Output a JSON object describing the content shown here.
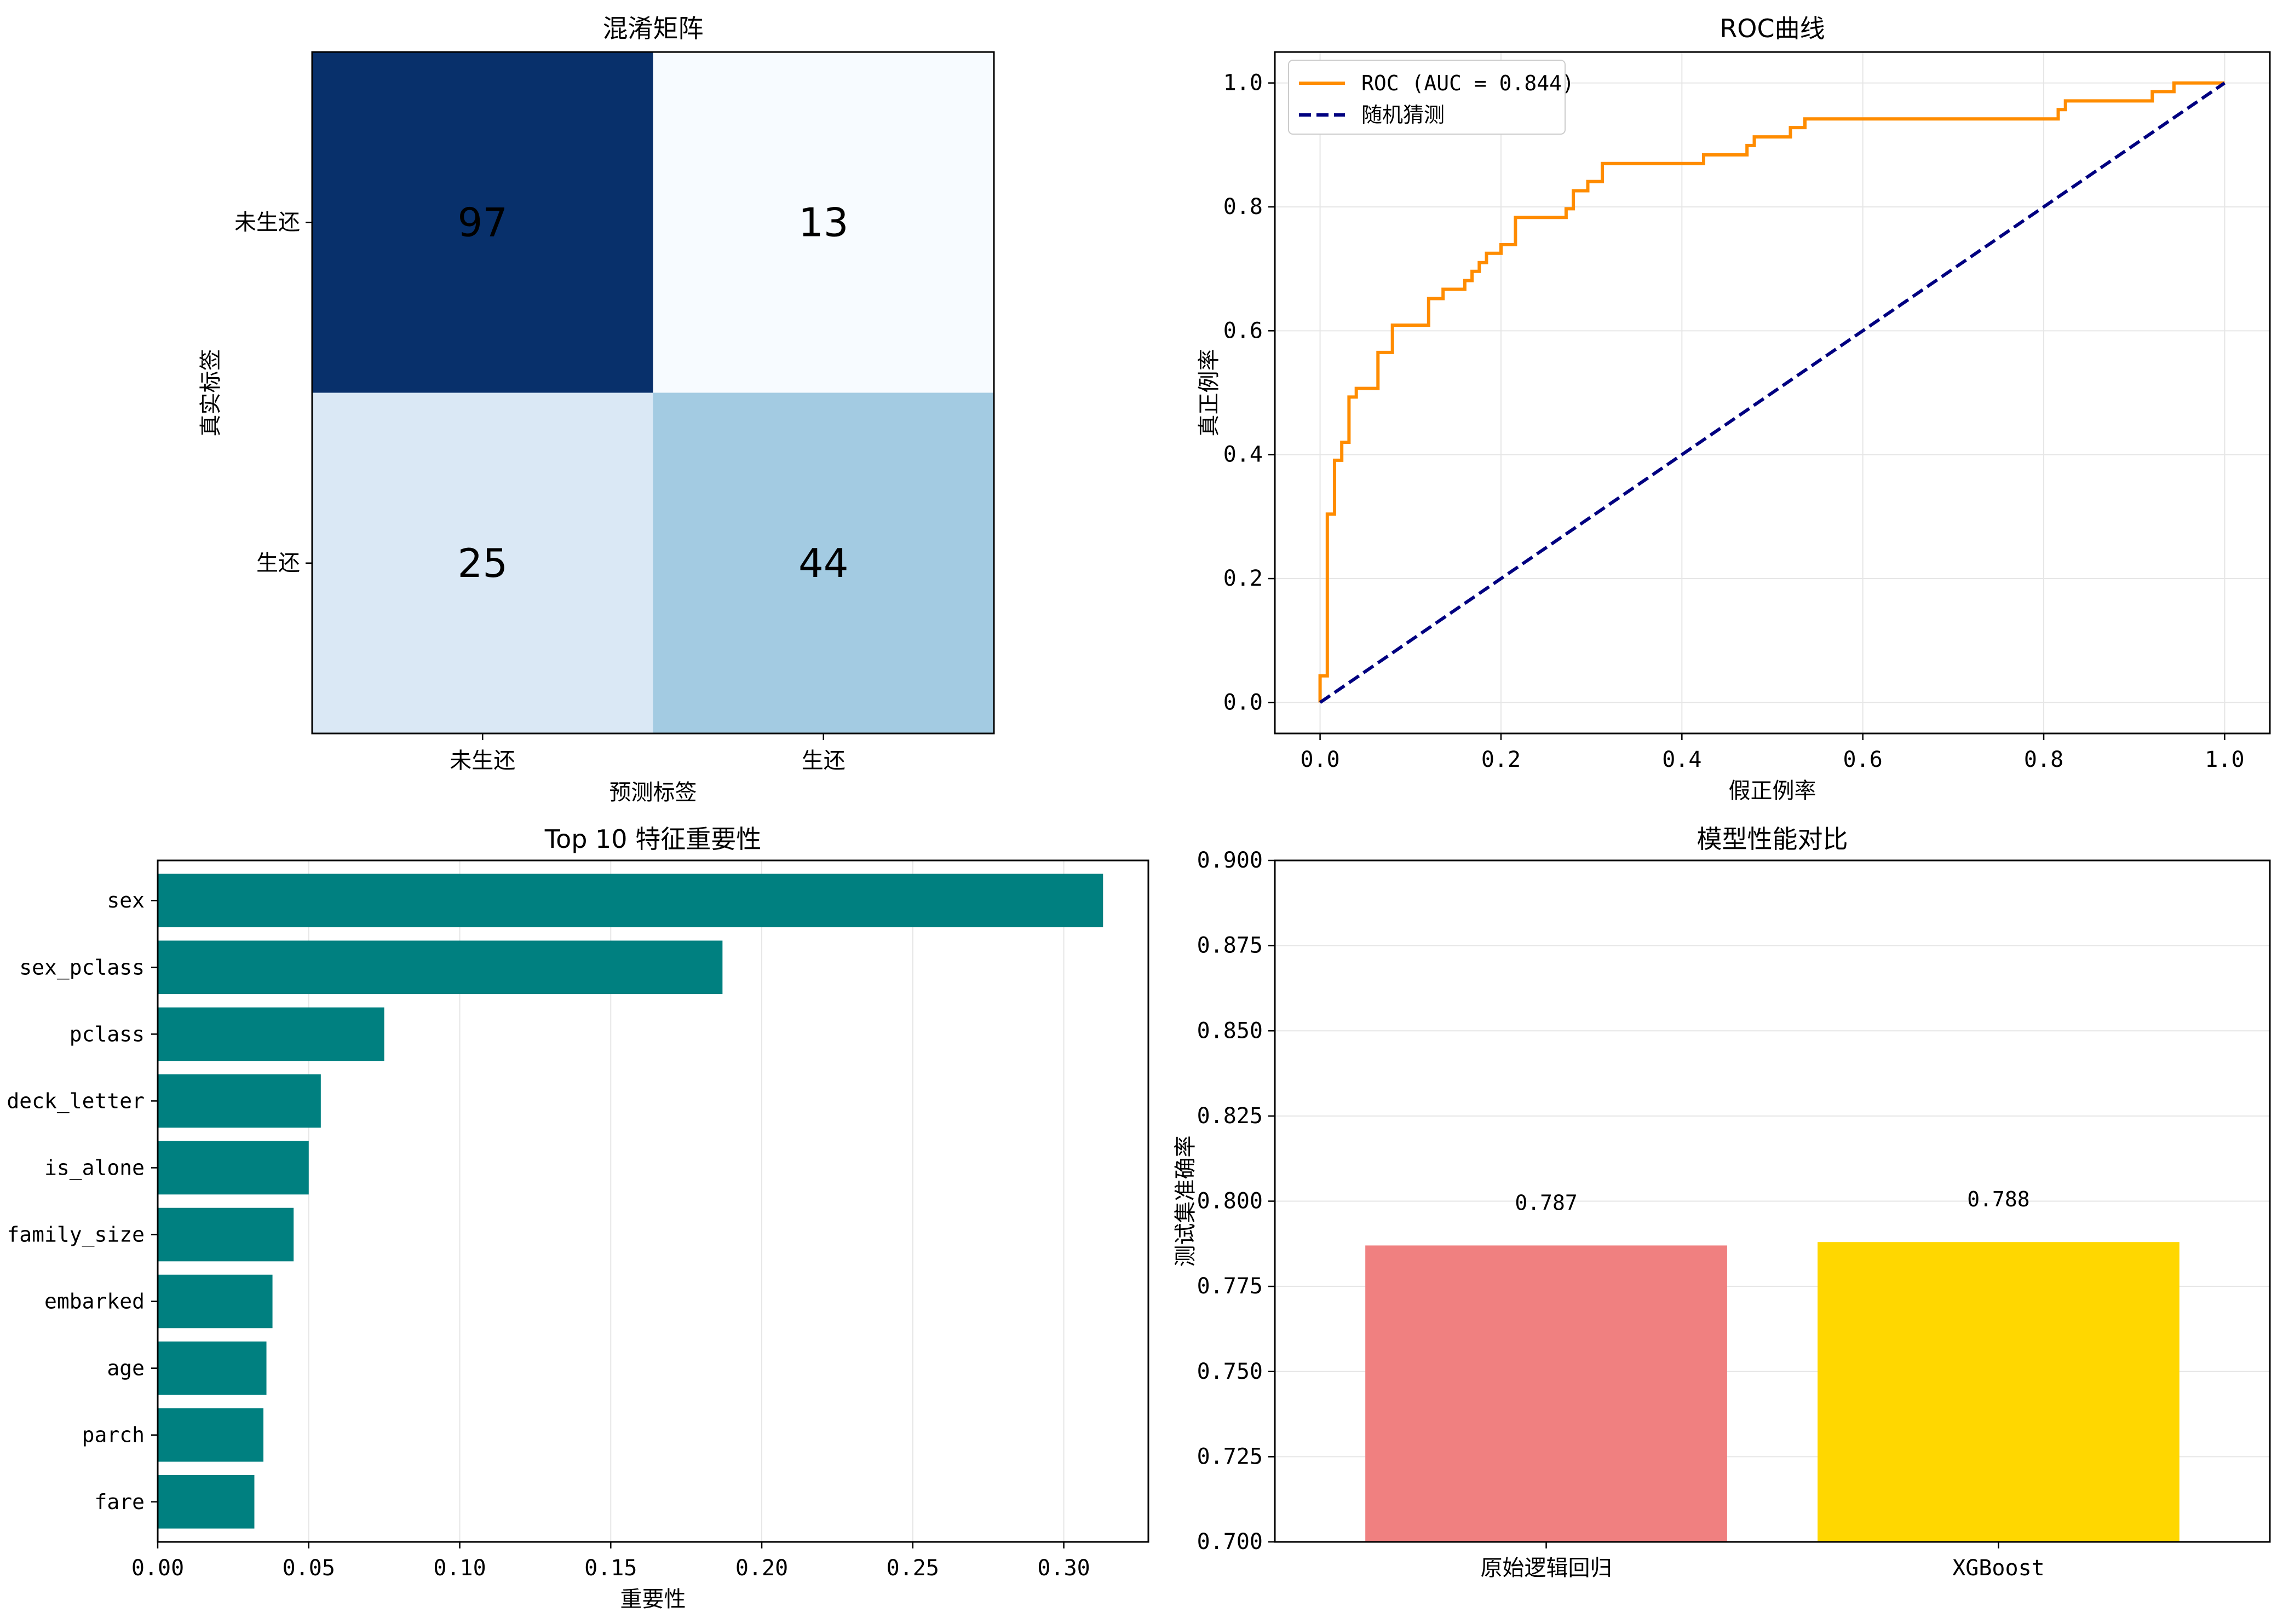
{
  "chart_data": [
    {
      "type": "heatmap",
      "title": "混淆矩阵",
      "xlabel": "预测标签",
      "ylabel": "真实标签",
      "x_categories": [
        "未生还",
        "生还"
      ],
      "y_categories": [
        "未生还",
        "生还"
      ],
      "values": [
        [
          97,
          13
        ],
        [
          25,
          44
        ]
      ],
      "colormap": "Blues",
      "colors": [
        [
          "#08306b",
          "#f7fbff"
        ],
        [
          "#dae8f5",
          "#a3cbe2"
        ]
      ],
      "value_text_colors": [
        [
          "#000000",
          "#000000"
        ],
        [
          "#000000",
          "#000000"
        ]
      ]
    },
    {
      "type": "line",
      "title": "ROC曲线",
      "xlabel": "假正例率",
      "ylabel": "真正例率",
      "xlim": [
        -0.05,
        1.05
      ],
      "ylim": [
        -0.05,
        1.05
      ],
      "xticks": [
        "0.0",
        "0.2",
        "0.4",
        "0.6",
        "0.8",
        "1.0"
      ],
      "yticks": [
        "0.0",
        "0.2",
        "0.4",
        "0.6",
        "0.8",
        "1.0"
      ],
      "grid": true,
      "legend_position": "top-left",
      "series": [
        {
          "name": "ROC (AUC = 0.844)",
          "color": "#ff8c00",
          "style": "solid",
          "x": [
            0,
            0,
            0.008,
            0.008,
            0.016,
            0.016,
            0.024,
            0.024,
            0.032,
            0.032,
            0.04,
            0.04,
            0.048,
            0.048,
            0.064,
            0.064,
            0.08,
            0.08,
            0.12,
            0.12,
            0.136,
            0.136,
            0.16,
            0.16,
            0.168,
            0.168,
            0.176,
            0.176,
            0.184,
            0.184,
            0.2,
            0.2,
            0.216,
            0.216,
            0.272,
            0.272,
            0.28,
            0.28,
            0.296,
            0.296,
            0.312,
            0.312,
            0.424,
            0.424,
            0.472,
            0.472,
            0.48,
            0.48,
            0.52,
            0.52,
            0.536,
            0.536,
            0.816,
            0.816,
            0.824,
            0.824,
            0.912,
            0.912,
            0.92,
            0.92,
            0.944,
            0.944,
            1.0
          ],
          "y": [
            0,
            0.043,
            0.043,
            0.304,
            0.304,
            0.391,
            0.391,
            0.42,
            0.42,
            0.493,
            0.493,
            0.507,
            0.507,
            0.507,
            0.507,
            0.565,
            0.565,
            0.609,
            0.609,
            0.652,
            0.652,
            0.667,
            0.667,
            0.681,
            0.681,
            0.696,
            0.696,
            0.71,
            0.71,
            0.725,
            0.725,
            0.739,
            0.739,
            0.783,
            0.783,
            0.797,
            0.797,
            0.826,
            0.826,
            0.841,
            0.841,
            0.87,
            0.87,
            0.884,
            0.884,
            0.899,
            0.899,
            0.913,
            0.913,
            0.928,
            0.928,
            0.942,
            0.942,
            0.957,
            0.957,
            0.971,
            0.971,
            0.971,
            0.971,
            0.986,
            0.986,
            1.0,
            1.0
          ]
        },
        {
          "name": "随机猜测",
          "color": "#000080",
          "style": "dashed",
          "x": [
            0,
            1
          ],
          "y": [
            0,
            1
          ]
        }
      ]
    },
    {
      "type": "bar",
      "orientation": "horizontal",
      "title": "Top 10 特征重要性",
      "xlabel": "重要性",
      "ylabel": "",
      "xlim": [
        0,
        0.328
      ],
      "xticks": [
        "0.00",
        "0.05",
        "0.10",
        "0.15",
        "0.20",
        "0.25",
        "0.30"
      ],
      "grid": true,
      "bar_color": "#008080",
      "categories": [
        "sex",
        "sex_pclass",
        "pclass",
        "deck_letter",
        "is_alone",
        "family_size",
        "embarked",
        "age",
        "parch",
        "fare"
      ],
      "values": [
        0.313,
        0.187,
        0.075,
        0.054,
        0.05,
        0.045,
        0.038,
        0.036,
        0.035,
        0.032
      ]
    },
    {
      "type": "bar",
      "title": "模型性能对比",
      "xlabel": "",
      "ylabel": "测试集准确率",
      "ylim": [
        0.7,
        0.9
      ],
      "yticks": [
        "0.700",
        "0.725",
        "0.750",
        "0.775",
        "0.800",
        "0.825",
        "0.850",
        "0.875",
        "0.900"
      ],
      "grid": true,
      "categories": [
        "原始逻辑回归",
        "XGBoost"
      ],
      "values": [
        0.787,
        0.788
      ],
      "value_labels": [
        "0.787",
        "0.788"
      ],
      "colors": [
        "#f08080",
        "#ffd700"
      ]
    }
  ]
}
